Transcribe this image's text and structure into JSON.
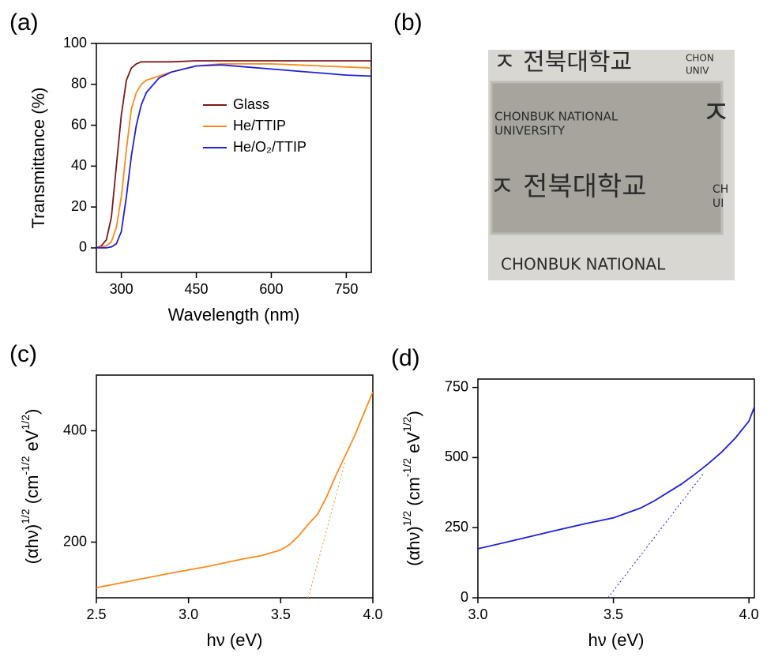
{
  "chart_data": [
    {
      "type": "line",
      "panel_label": "(a)",
      "xlabel": "Wavelength (nm)",
      "ylabel": "Transmittance (%)",
      "xlim": [
        250,
        800
      ],
      "ylim": [
        -12,
        100
      ],
      "xticks": [
        300,
        450,
        600,
        750
      ],
      "yticks": [
        0,
        20,
        40,
        60,
        80,
        100
      ],
      "x": [
        250,
        260,
        270,
        280,
        290,
        300,
        310,
        320,
        330,
        340,
        350,
        375,
        400,
        450,
        500,
        550,
        600,
        650,
        700,
        750,
        800
      ],
      "series": [
        {
          "name": "Glass",
          "color": "#7b1a1a",
          "values": [
            0,
            1,
            4,
            15,
            40,
            65,
            82,
            88,
            90,
            91,
            91,
            91,
            91,
            91.5,
            91.5,
            91.5,
            91.5,
            91.5,
            91.5,
            91.5,
            91.5
          ]
        },
        {
          "name": "He/TTIP",
          "color": "#ff8a1c",
          "values": [
            0,
            0.5,
            1,
            3,
            10,
            25,
            48,
            68,
            76,
            80,
            82,
            84,
            86,
            89,
            90,
            90,
            90,
            89.5,
            89,
            88.5,
            88
          ]
        },
        {
          "name": "He/O₂/TTIP",
          "color": "#1f1fe0",
          "values": [
            0,
            0,
            0,
            0.5,
            2,
            8,
            25,
            45,
            60,
            70,
            76,
            83,
            86,
            89,
            89.5,
            88.5,
            87.5,
            86.5,
            85.5,
            84.5,
            84
          ]
        }
      ],
      "legend": "center-right"
    },
    {
      "type": "line",
      "panel_label": "(c)",
      "xlabel": "hν (eV)",
      "ylabel": [
        {
          "text": "(αhν)"
        },
        {
          "text": "1/2",
          "sup": true
        },
        {
          "text": " (cm"
        },
        {
          "text": "-1/2",
          "sup": true
        },
        {
          "text": " eV"
        },
        {
          "text": "1/2",
          "sup": true
        },
        {
          "text": ")"
        }
      ],
      "xlim": [
        2.5,
        4.0
      ],
      "ylim": [
        100,
        500
      ],
      "xticks": [
        2.5,
        {
          "value": 3,
          "label": "3.0"
        },
        3.5,
        {
          "value": 4,
          "label": "4.0"
        }
      ],
      "yticks": [
        200,
        400
      ],
      "series": [
        {
          "color": "#ff8a1c",
          "x": [
            2.5,
            2.7,
            2.9,
            3.1,
            3.3,
            3.4,
            3.5,
            3.55,
            3.6,
            3.65,
            3.7,
            3.75,
            3.8,
            3.85,
            3.9,
            3.95,
            4.0
          ],
          "values": [
            118,
            131,
            144,
            156,
            170,
            176,
            186,
            196,
            212,
            232,
            250,
            282,
            320,
            355,
            390,
            430,
            470
          ]
        },
        {
          "color": "#ff8a1c",
          "style": "dotted",
          "x": [
            3.65,
            3.85
          ],
          "values": [
            100,
            345
          ]
        }
      ]
    },
    {
      "type": "line",
      "panel_label": "(d)",
      "xlabel": "hν (eV)",
      "ylabel": [
        {
          "text": "(αhν)"
        },
        {
          "text": "1/2",
          "sup": true
        },
        {
          "text": " (cm"
        },
        {
          "text": "-1/2",
          "sup": true
        },
        {
          "text": " eV"
        },
        {
          "text": "1/2",
          "sup": true
        },
        {
          "text": ")"
        }
      ],
      "xlim": [
        3.0,
        4.02
      ],
      "ylim": [
        0,
        780
      ],
      "xticks": [
        {
          "value": 3,
          "label": "3.0"
        },
        3.5,
        {
          "value": 4,
          "label": "4.0"
        }
      ],
      "yticks": [
        0,
        250,
        500,
        750
      ],
      "series": [
        {
          "color": "#1f1fe0",
          "x": [
            3.0,
            3.1,
            3.2,
            3.3,
            3.4,
            3.5,
            3.6,
            3.65,
            3.7,
            3.75,
            3.8,
            3.85,
            3.9,
            3.95,
            4.0,
            4.02
          ],
          "values": [
            175,
            197,
            220,
            243,
            265,
            285,
            320,
            345,
            375,
            405,
            440,
            478,
            520,
            570,
            630,
            680
          ]
        },
        {
          "color": "#1f1fe0",
          "style": "dotted",
          "x": [
            3.48,
            3.83
          ],
          "values": [
            0,
            440
          ]
        }
      ]
    }
  ],
  "photo": {
    "panel_label": "(b)",
    "texts": [
      "ㅈ 전북대학교",
      "CHON",
      "UNIV",
      "CHONBUK NATIONAL",
      "UNIVERSITY",
      "ㅈ",
      "ㅈ 전북대학교",
      "CH",
      "UI",
      "CHONBUK NATIONAL"
    ]
  }
}
